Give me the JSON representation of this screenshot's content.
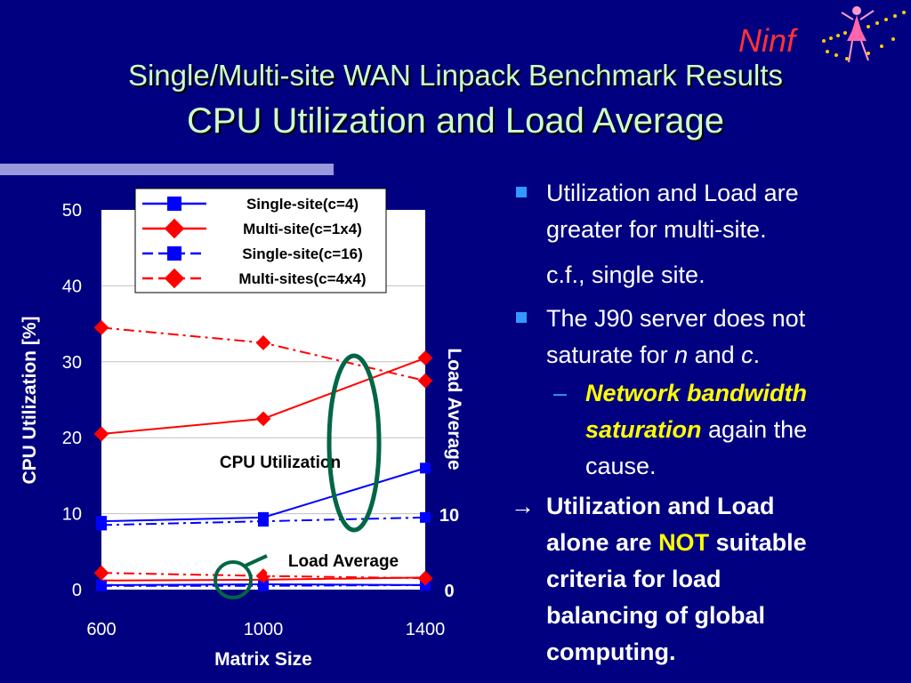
{
  "slide": {
    "title_line1": "Single/Multi-site WAN Linpack Benchmark Results",
    "title_line2": "CPU Utilization and Load Average",
    "logo_text": "Ninf"
  },
  "bullets": {
    "b1_line1": "Utilization and Load are",
    "b1_line2": "greater for multi-site.",
    "b1_line3": "c.f., single site.",
    "b2_line1": "The J90 server does not",
    "b2_pre": "saturate for ",
    "b2_n": "n",
    "b2_and": " and ",
    "b2_c": "c",
    "b2_end": ".",
    "dash_mark": "–",
    "sub_line1": "Network bandwidth",
    "sub_line2_em": "saturation",
    "sub_line2_rest": " again the",
    "sub_line3": "cause.",
    "arrow": "→",
    "c_line1": "Utilization and Load",
    "c_line2_pre": "alone are ",
    "c_line2_not": "NOT",
    "c_line2_post": " suitable",
    "c_line3": "criteria for load",
    "c_line4": "balancing of global",
    "c_line5": "computing."
  },
  "chart_data": {
    "type": "line",
    "x": [
      600,
      1000,
      1400
    ],
    "xlabel": "Matrix Size",
    "ylabel": "CPU Utilization [%]",
    "y2label": "Load Average",
    "ylim": [
      0,
      50
    ],
    "yticks": [
      "0",
      "10",
      "20",
      "30",
      "40",
      "50"
    ],
    "xticks": [
      "600",
      "1000",
      "1400"
    ],
    "y2ticks": [
      "0",
      "10"
    ],
    "grid": true,
    "legend_position": "top",
    "series": [
      {
        "name": "Single-site(c=4)",
        "color": "#0000ff",
        "style": "solid",
        "marker": "square",
        "values": [
          9,
          9.5,
          16
        ]
      },
      {
        "name": "Multi-site(c=1x4)",
        "color": "#ff0000",
        "style": "solid",
        "marker": "diamond",
        "values": [
          20.5,
          22.5,
          30.5
        ]
      },
      {
        "name": "Single-site(c=16)",
        "color": "#0000ff",
        "style": "dashdot",
        "marker": "square",
        "values": [
          8.5,
          9,
          9.5
        ]
      },
      {
        "name": "Multi-sites(c=4x4)",
        "color": "#ff0000",
        "style": "dashdot",
        "marker": "diamond",
        "values": [
          34.5,
          32.5,
          27.5
        ]
      },
      {
        "color": "#0000ff",
        "style": "solid",
        "marker": "square",
        "values": [
          0.6,
          0.7,
          0.6
        ]
      },
      {
        "color": "#ff0000",
        "style": "solid",
        "marker": "none",
        "values": [
          1.2,
          1.3,
          1.6
        ]
      },
      {
        "color": "#0000ff",
        "style": "dashdot",
        "marker": "square",
        "values": [
          0.5,
          0.5,
          0.6
        ]
      },
      {
        "color": "#ff0000",
        "style": "dashdot",
        "marker": "diamond",
        "values": [
          2.2,
          1.8,
          1.5
        ]
      }
    ],
    "annotations": [
      "CPU Utilization",
      "Load Average"
    ]
  }
}
